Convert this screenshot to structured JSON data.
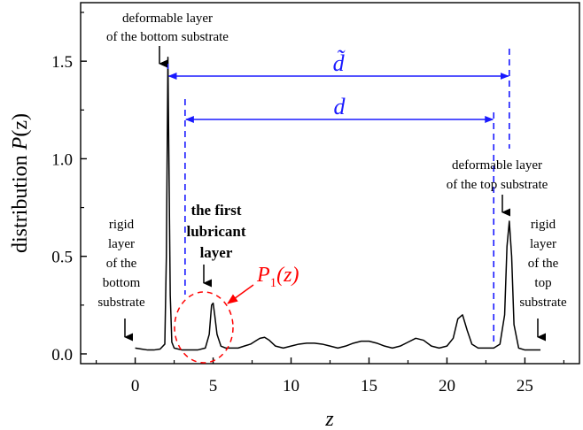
{
  "chart_data": {
    "type": "line",
    "title": "",
    "xlabel": "z",
    "ylabel": {
      "prefix": "distribution ",
      "symbol": "P",
      "suffix": "(z)"
    },
    "xlim": [
      -3.5,
      28.5
    ],
    "ylim": [
      -0.05,
      1.8
    ],
    "xticks": [
      0,
      5,
      10,
      15,
      20,
      25
    ],
    "yticks": [
      0.0,
      0.5,
      1.0,
      1.5
    ],
    "ytick_labels": [
      "0.0",
      "0.5",
      "1.0",
      "1.5"
    ],
    "grid": false,
    "line_color": "#000000",
    "annotation_color": "#1a1aff",
    "highlight_color": "#ff0000",
    "series": [
      {
        "x": [
          0.0,
          0.4,
          0.8,
          1.2,
          1.6,
          1.9,
          2.0,
          2.1,
          2.15,
          2.25,
          2.35,
          2.5,
          3.0,
          3.5,
          4.0,
          4.5,
          4.75,
          4.9,
          5.0,
          5.1,
          5.25,
          5.5,
          5.8,
          6.2,
          6.6,
          7.0,
          7.4,
          7.8,
          8.0,
          8.3,
          8.6,
          9.0,
          9.5,
          10.0,
          10.5,
          11.0,
          11.5,
          12.0,
          12.5,
          13.0,
          13.5,
          14.0,
          14.5,
          15.0,
          15.5,
          16.0,
          16.5,
          17.0,
          17.5,
          18.0,
          18.5,
          19.0,
          19.5,
          20.0,
          20.4,
          20.7,
          21.0,
          21.3,
          21.6,
          22.0,
          22.5,
          23.0,
          23.4,
          23.7,
          23.85,
          24.0,
          24.15,
          24.3,
          24.6,
          25.0,
          25.5,
          26.0
        ],
        "y": [
          0.03,
          0.025,
          0.02,
          0.02,
          0.025,
          0.05,
          0.5,
          1.52,
          1.1,
          0.3,
          0.06,
          0.03,
          0.02,
          0.02,
          0.02,
          0.03,
          0.1,
          0.25,
          0.26,
          0.2,
          0.1,
          0.04,
          0.03,
          0.03,
          0.03,
          0.04,
          0.05,
          0.07,
          0.08,
          0.085,
          0.07,
          0.04,
          0.03,
          0.04,
          0.05,
          0.055,
          0.055,
          0.05,
          0.04,
          0.03,
          0.04,
          0.055,
          0.065,
          0.065,
          0.055,
          0.04,
          0.03,
          0.04,
          0.06,
          0.08,
          0.07,
          0.04,
          0.03,
          0.04,
          0.08,
          0.18,
          0.2,
          0.12,
          0.05,
          0.03,
          0.03,
          0.03,
          0.05,
          0.2,
          0.55,
          0.68,
          0.5,
          0.15,
          0.03,
          0.02,
          0.02,
          0.02
        ]
      }
    ]
  },
  "annotations": {
    "bottom_deformable": {
      "line1": "deformable layer",
      "line2": "of the bottom substrate"
    },
    "top_deformable": {
      "line1": "deformable layer",
      "line2": "of the top substrate"
    },
    "rigid_bottom": [
      "rigid",
      "layer",
      "of the",
      "bottom",
      "substrate"
    ],
    "rigid_top": [
      "rigid",
      "layer",
      "of the",
      "top",
      "substrate"
    ],
    "first_lubricant": [
      "the first",
      "lubricant",
      "layer"
    ],
    "p1": {
      "symbol": "P",
      "subscript": "1",
      "suffix": "(z)"
    },
    "d_tilde": "d̃",
    "d": "d",
    "d_tilde_span": [
      2.1,
      24.0
    ],
    "d_span": [
      3.2,
      23.0
    ]
  }
}
